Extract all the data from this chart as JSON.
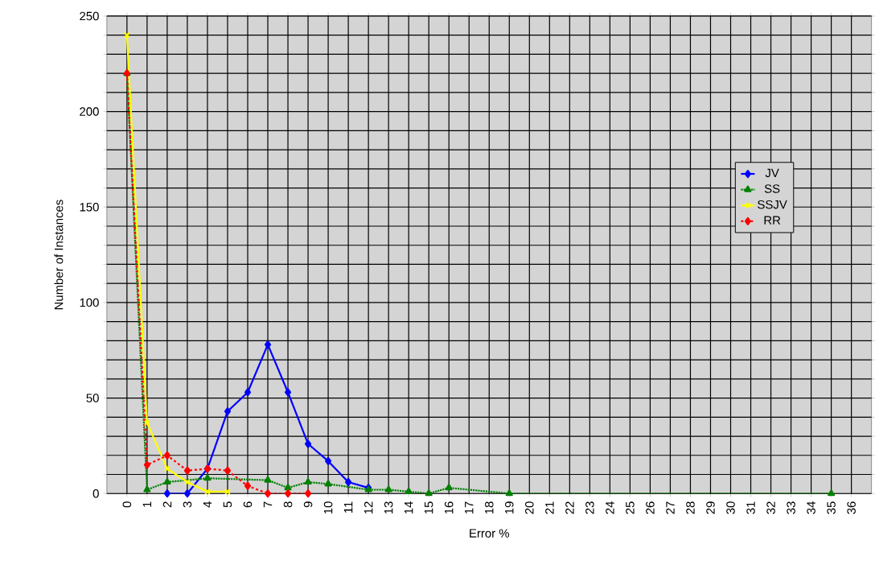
{
  "chart_data": {
    "type": "line",
    "xlabel": "Error %",
    "ylabel": "Number of Instances",
    "xlim": [
      -1,
      37
    ],
    "xticks": [
      0,
      1,
      2,
      3,
      4,
      5,
      6,
      7,
      8,
      9,
      10,
      11,
      12,
      13,
      14,
      15,
      16,
      17,
      18,
      19,
      20,
      21,
      22,
      23,
      24,
      25,
      26,
      27,
      28,
      29,
      30,
      31,
      32,
      33,
      34,
      35,
      36
    ],
    "ylim": [
      0,
      250
    ],
    "yticks": [
      0,
      {
        "value": 10,
        "label": null
      },
      {
        "value": 20,
        "label": null
      },
      {
        "value": 30,
        "label": null
      },
      {
        "value": 40,
        "label": null
      },
      50,
      {
        "value": 60,
        "label": null
      },
      {
        "value": 70,
        "label": null
      },
      {
        "value": 80,
        "label": null
      },
      {
        "value": 90,
        "label": null
      },
      100,
      {
        "value": 110,
        "label": null
      },
      {
        "value": 120,
        "label": null
      },
      {
        "value": 130,
        "label": null
      },
      {
        "value": 140,
        "label": null
      },
      150,
      {
        "value": 160,
        "label": null
      },
      {
        "value": 170,
        "label": null
      },
      {
        "value": 180,
        "label": null
      },
      {
        "value": 190,
        "label": null
      },
      200,
      {
        "value": 210,
        "label": null
      },
      {
        "value": 220,
        "label": null
      },
      {
        "value": 230,
        "label": null
      },
      {
        "value": 240,
        "label": null
      },
      250
    ],
    "grid": true,
    "legend": "right",
    "series": [
      {
        "name": "JV",
        "color": "#0000ff",
        "marker": "diamond",
        "line_style": "solid",
        "x": [
          2,
          3,
          4,
          5,
          6,
          7,
          8,
          9,
          10,
          11,
          12
        ],
        "values": [
          0,
          0,
          13,
          43,
          53,
          78,
          53,
          26,
          17,
          6,
          3
        ]
      },
      {
        "name": "SS",
        "color": "#008000",
        "marker": "triangle",
        "line_style": "dotted",
        "x": [
          0,
          1,
          2,
          4,
          7,
          8,
          9,
          10,
          12,
          13,
          14,
          15,
          16,
          19,
          35
        ],
        "values": [
          220,
          2,
          6,
          8,
          7,
          3,
          6,
          5,
          2,
          2,
          1,
          0,
          3,
          0,
          0
        ]
      },
      {
        "name": "SSJV",
        "color": "#ffff00",
        "marker": "cross",
        "line_style": "solid",
        "x": [
          0,
          1,
          2,
          3,
          4,
          5
        ],
        "values": [
          240,
          37,
          13,
          6,
          1,
          1
        ]
      },
      {
        "name": "RR",
        "color": "#ff0000",
        "marker": "diamond",
        "line_style": "dashed",
        "x": [
          0,
          1,
          2,
          3,
          4,
          5,
          6,
          7,
          8,
          9
        ],
        "values": [
          220,
          15,
          20,
          12,
          13,
          12,
          4,
          0,
          0,
          0
        ]
      }
    ]
  }
}
